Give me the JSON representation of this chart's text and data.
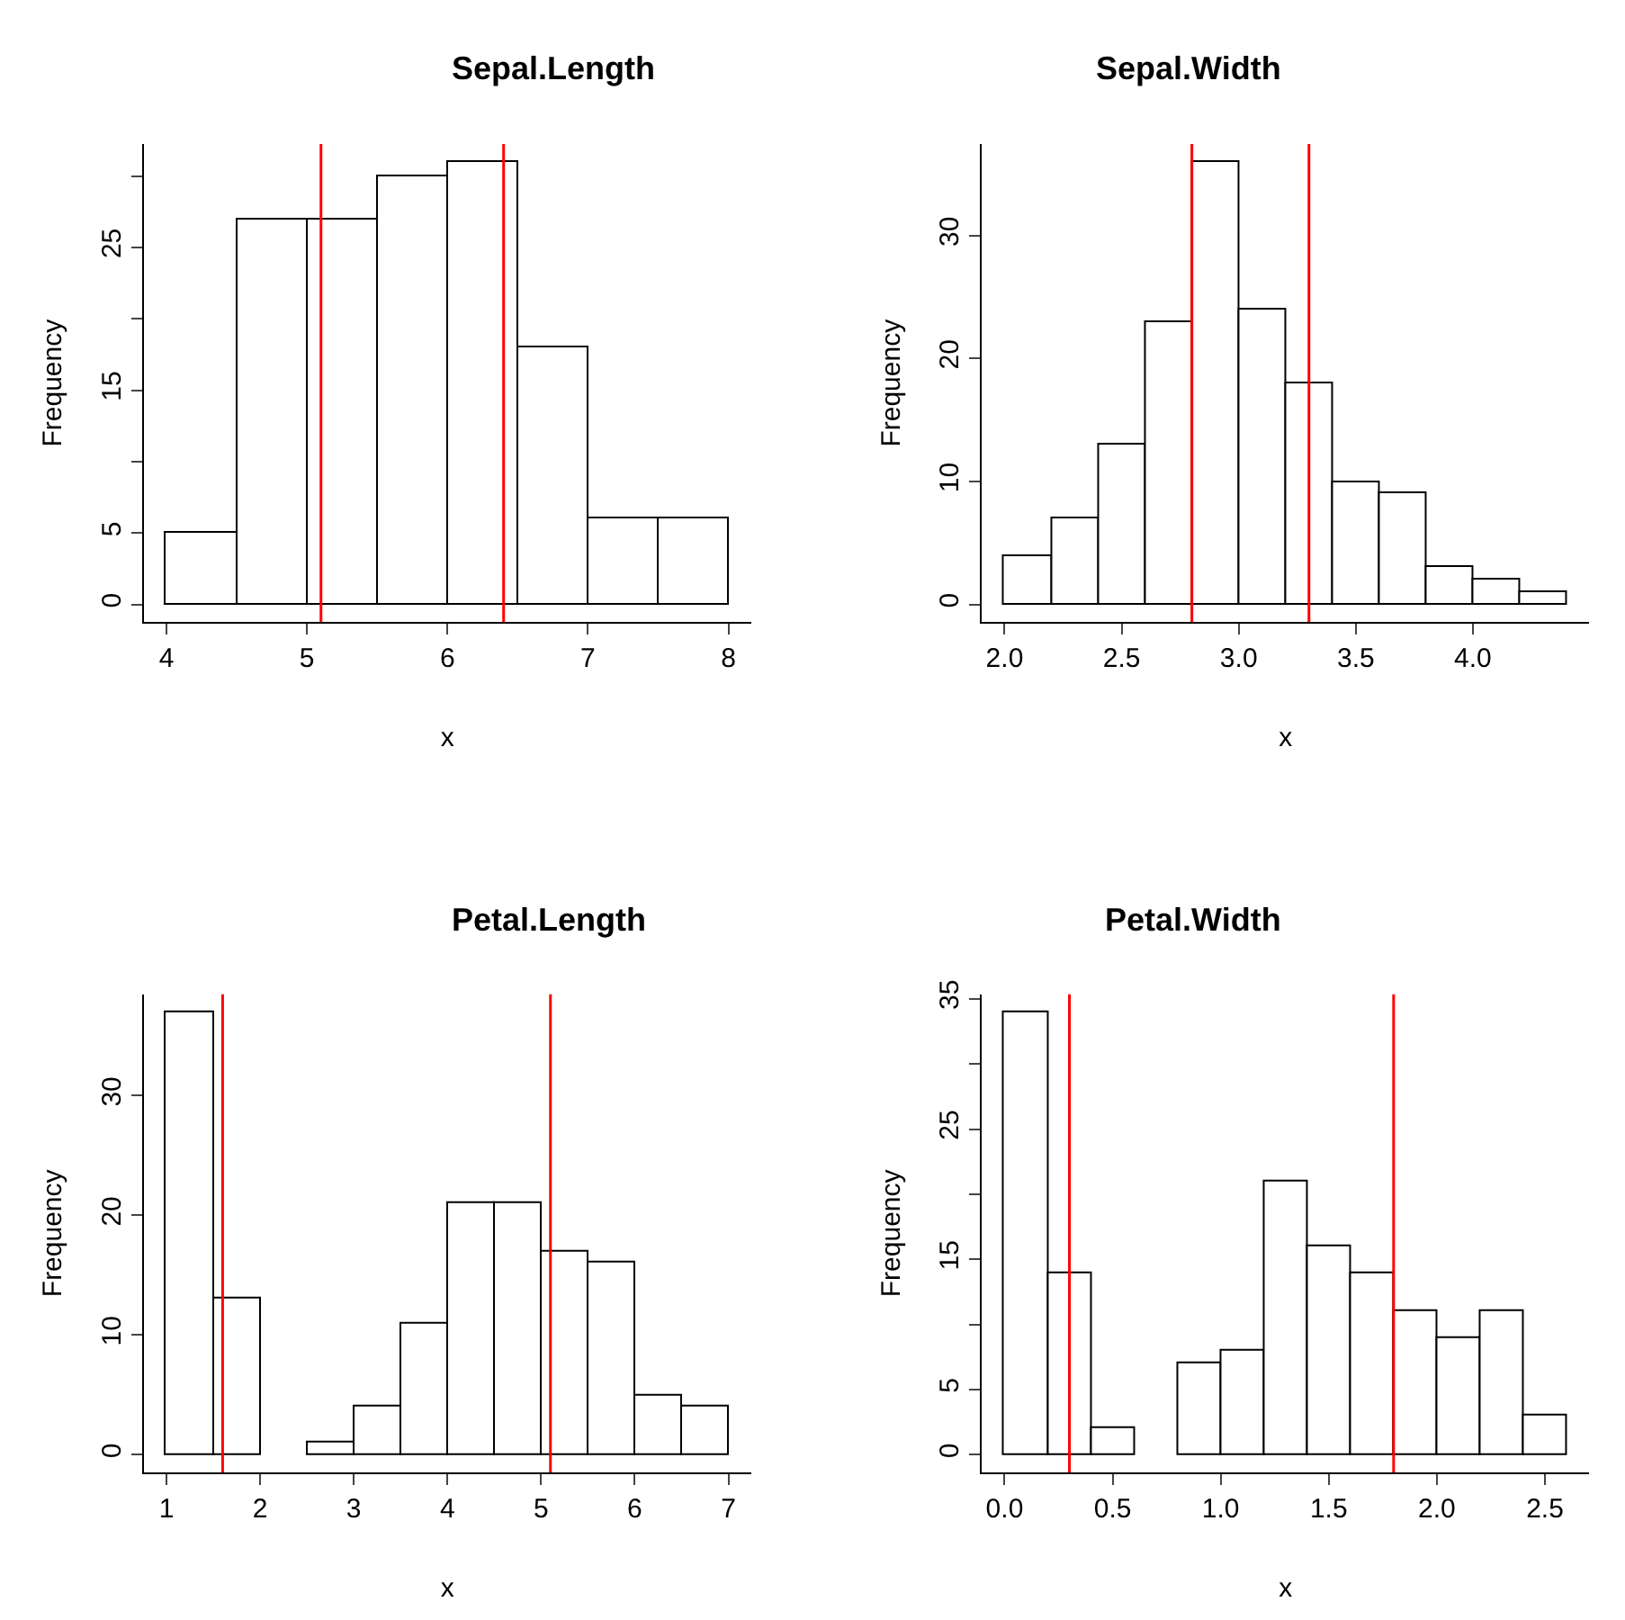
{
  "chart_data": [
    {
      "type": "histogram",
      "title": "Sepal.Length",
      "xlabel": "x",
      "ylabel": "Frequency",
      "bins": [
        4,
        4.5,
        5,
        5.5,
        6,
        6.5,
        7,
        7.5,
        8
      ],
      "values": [
        5,
        27,
        27,
        30,
        31,
        18,
        6,
        6
      ],
      "color": "#ffffff",
      "xlim": [
        3.84,
        8.16
      ],
      "ylim": [
        -1.24,
        32.24
      ],
      "xticks": [
        4,
        5,
        6,
        7,
        8
      ],
      "yticks": [
        0,
        5,
        {
          "value": 10,
          "label": null
        },
        15,
        {
          "value": 20,
          "label": null
        },
        25,
        {
          "value": 30,
          "label": null
        }
      ],
      "ref_lines": [
        {
          "axis": "x",
          "value": 5.1,
          "color": "#ff0000"
        },
        {
          "axis": "x",
          "value": 6.4,
          "color": "#ff0000"
        }
      ]
    },
    {
      "type": "histogram",
      "title": "Sepal.Width",
      "xlabel": "x",
      "ylabel": "Frequency",
      "bins": [
        2.0,
        2.2,
        2.4,
        2.6,
        2.8,
        3.0,
        3.2,
        3.4,
        3.6,
        3.8,
        4.0,
        4.2,
        4.4
      ],
      "values": [
        4,
        7,
        13,
        23,
        36,
        24,
        18,
        10,
        9,
        3,
        2,
        1
      ],
      "color": "#ffffff",
      "xlim": [
        1.904,
        4.496
      ],
      "ylim": [
        -1.44,
        37.44
      ],
      "xticks": [
        {
          "value": 2,
          "label": "2.0"
        },
        2.5,
        {
          "value": 3,
          "label": "3.0"
        },
        3.5,
        {
          "value": 4,
          "label": "4.0"
        }
      ],
      "yticks": [
        0,
        10,
        20,
        30
      ],
      "ref_lines": [
        {
          "axis": "x",
          "value": 2.8,
          "color": "#ff0000"
        },
        {
          "axis": "x",
          "value": 3.3,
          "color": "#ff0000"
        }
      ]
    },
    {
      "type": "histogram",
      "title": "Petal.Length",
      "xlabel": "x",
      "ylabel": "Frequency",
      "bins": [
        1,
        1.5,
        2,
        2.5,
        3,
        3.5,
        4,
        4.5,
        5,
        5.5,
        6,
        6.5,
        7
      ],
      "values": [
        37,
        13,
        0,
        1,
        4,
        11,
        21,
        21,
        17,
        16,
        5,
        4
      ],
      "color": "#ffffff",
      "xlim": [
        0.76,
        7.24
      ],
      "ylim": [
        -1.48,
        38.48
      ],
      "xticks": [
        1,
        2,
        3,
        4,
        5,
        6,
        7
      ],
      "yticks": [
        0,
        10,
        20,
        30
      ],
      "ref_lines": [
        {
          "axis": "x",
          "value": 1.6,
          "color": "#ff0000"
        },
        {
          "axis": "x",
          "value": 5.1,
          "color": "#ff0000"
        }
      ]
    },
    {
      "type": "histogram",
      "title": "Petal.Width",
      "xlabel": "x",
      "ylabel": "Frequency",
      "bins": [
        0,
        0.2,
        0.4,
        0.6,
        0.8,
        1.0,
        1.2,
        1.4,
        1.6,
        1.8,
        2.0,
        2.2,
        2.4,
        2.6
      ],
      "values": [
        34,
        14,
        2,
        0,
        7,
        8,
        21,
        16,
        14,
        11,
        9,
        11,
        3
      ],
      "color": "#ffffff",
      "xlim": [
        -0.104,
        2.704
      ],
      "ylim": [
        -1.36,
        35.36
      ],
      "xticks": [
        {
          "value": 0,
          "label": "0.0"
        },
        0.5,
        {
          "value": 1,
          "label": "1.0"
        },
        1.5,
        {
          "value": 2,
          "label": "2.0"
        },
        2.5
      ],
      "yticks": [
        0,
        5,
        {
          "value": 10,
          "label": null
        },
        15,
        {
          "value": 20,
          "label": null
        },
        25,
        {
          "value": 30,
          "label": null
        },
        35
      ],
      "ref_lines": [
        {
          "axis": "x",
          "value": 0.3,
          "color": "#ff0000"
        },
        {
          "axis": "x",
          "value": 1.8,
          "color": "#ff0000"
        }
      ]
    }
  ]
}
